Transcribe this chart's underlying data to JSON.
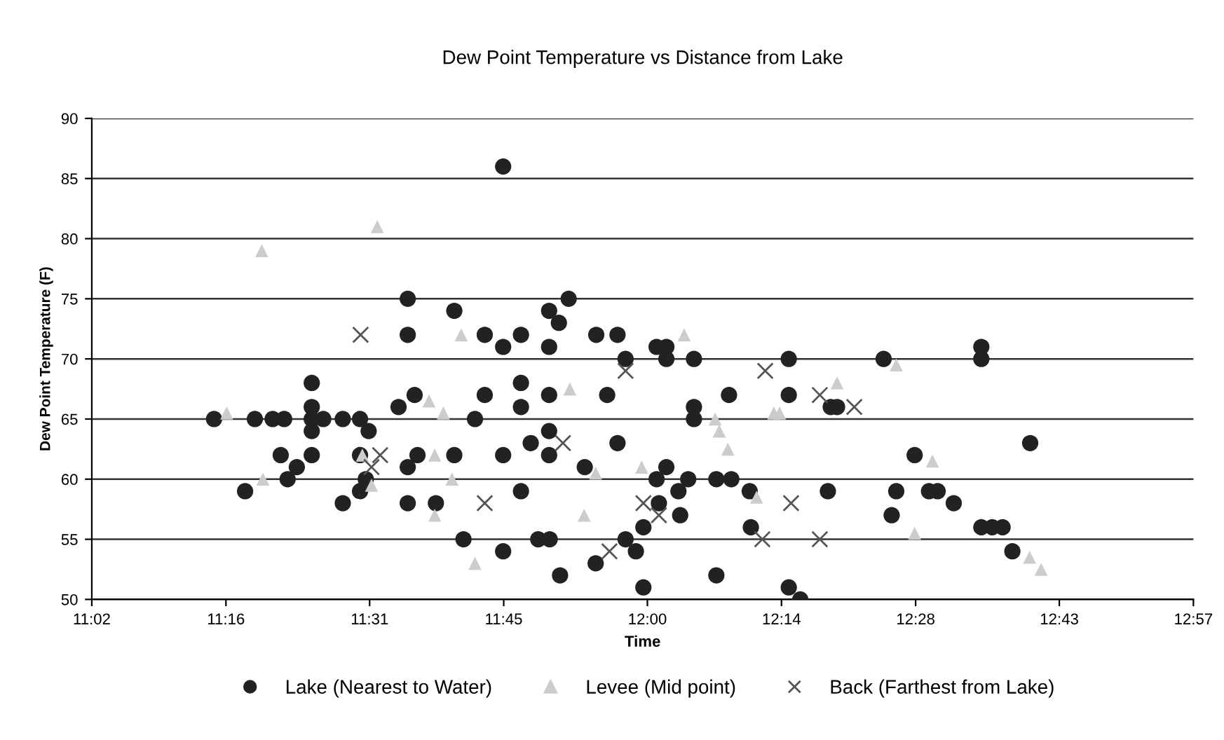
{
  "chart_data": {
    "type": "scatter",
    "title": "Dew Point Temperature vs Distance from Lake",
    "xlabel": "Time",
    "ylabel": "Dew Point Temperature (F)",
    "xlim": [
      11.0333,
      12.95
    ],
    "xticks": [
      {
        "value": 11.0333,
        "label": "11:02"
      },
      {
        "value": 11.2667,
        "label": "11:16"
      },
      {
        "value": 11.5167,
        "label": "11:31"
      },
      {
        "value": 11.75,
        "label": "11:45"
      },
      {
        "value": 12.0,
        "label": "12:00"
      },
      {
        "value": 12.2333,
        "label": "12:14"
      },
      {
        "value": 12.4667,
        "label": "12:28"
      },
      {
        "value": 12.7167,
        "label": "12:43"
      },
      {
        "value": 12.95,
        "label": "12:57"
      }
    ],
    "ylim": [
      50,
      90
    ],
    "yticks": [
      50,
      55,
      60,
      65,
      70,
      75,
      80,
      85,
      90
    ],
    "grid": "y",
    "legend": "bottom",
    "series": [
      {
        "name": "Lake (Nearest to Water)",
        "color": "#222222",
        "marker": "circle",
        "x": [
          11.583,
          11.664,
          11.583,
          11.416,
          11.246,
          11.317,
          11.348,
          11.368,
          11.416,
          11.416,
          11.416,
          11.416,
          11.436,
          11.47,
          11.5,
          11.515,
          11.362,
          11.39,
          11.374,
          11.3,
          11.47,
          11.5,
          11.5,
          11.51,
          11.567,
          11.595,
          11.583,
          11.6,
          11.583,
          11.632,
          11.664,
          11.68,
          11.749,
          11.863,
          11.829,
          11.846,
          11.717,
          11.749,
          11.78,
          11.829,
          11.911,
          11.948,
          11.962,
          12.016,
          12.033,
          12.033,
          12.081,
          12.142,
          11.717,
          11.78,
          11.78,
          11.829,
          11.93,
          11.7,
          12.081,
          12.081,
          11.749,
          11.797,
          11.829,
          11.829,
          11.948,
          11.891,
          11.78,
          12.033,
          12.016,
          12.071,
          12.054,
          12.02,
          12.057,
          11.993,
          12.12,
          11.749,
          11.81,
          11.83,
          11.848,
          11.91,
          11.962,
          11.98,
          11.993,
          12.12,
          12.146,
          12.178,
          12.246,
          12.246,
          12.319,
          12.33,
          12.411,
          12.581,
          12.581,
          12.465,
          12.18,
          12.314,
          12.433,
          12.49,
          12.505,
          12.533,
          12.425,
          12.581,
          12.6,
          12.246,
          12.266,
          12.666,
          12.618,
          12.635
        ],
        "values": [
          75,
          74,
          72,
          68,
          65,
          65,
          65,
          65,
          66,
          65,
          64,
          62,
          65,
          65,
          65,
          64,
          62,
          61,
          60,
          59,
          58,
          59,
          62,
          60,
          66,
          67,
          61,
          62,
          58,
          58,
          62,
          55,
          86,
          75,
          74,
          73,
          72,
          71,
          72,
          71,
          72,
          72,
          70,
          71,
          70,
          71,
          70,
          67,
          67,
          68,
          66,
          67,
          67,
          65,
          66,
          65,
          62,
          63,
          64,
          62,
          63,
          61,
          59,
          61,
          60,
          60,
          59,
          58,
          57,
          56,
          60,
          54,
          55,
          55,
          52,
          53,
          55,
          54,
          51,
          52,
          60,
          59,
          70,
          67,
          66,
          66,
          70,
          71,
          70,
          62,
          56,
          59,
          59,
          59,
          59,
          58,
          57,
          56,
          56,
          51,
          50,
          63,
          56,
          54
        ]
      },
      {
        "name": "Levee (Mid point)",
        "color": "#cccccc",
        "marker": "triangle",
        "x": [
          11.53,
          11.329,
          11.268,
          11.676,
          11.62,
          11.645,
          11.331,
          11.504,
          11.52,
          11.63,
          11.66,
          11.63,
          11.7,
          11.865,
          12.064,
          12.118,
          11.91,
          11.99,
          11.89,
          12.125,
          12.14,
          12.19,
          12.22,
          12.23,
          12.33,
          12.433,
          12.496,
          12.465,
          12.665,
          12.685
        ],
        "values": [
          81,
          79,
          65.5,
          72,
          66.5,
          65.5,
          60,
          62,
          59.5,
          62,
          60,
          57,
          53,
          67.5,
          72,
          65,
          60.5,
          61,
          57,
          64,
          62.5,
          58.5,
          65.5,
          65.5,
          68,
          69.5,
          61.5,
          55.5,
          53.5,
          52.5
        ]
      },
      {
        "name": "Back (Farthest from Lake)",
        "color": "#555555",
        "marker": "cross",
        "x": [
          11.501,
          11.535,
          11.52,
          11.717,
          11.853,
          11.962,
          11.934,
          11.993,
          12.02,
          12.205,
          12.3,
          12.36,
          12.25,
          12.2,
          12.3
        ],
        "values": [
          72,
          62,
          61,
          58,
          63,
          69,
          54,
          58,
          57,
          69,
          67,
          66,
          58,
          55,
          55
        ]
      }
    ]
  }
}
